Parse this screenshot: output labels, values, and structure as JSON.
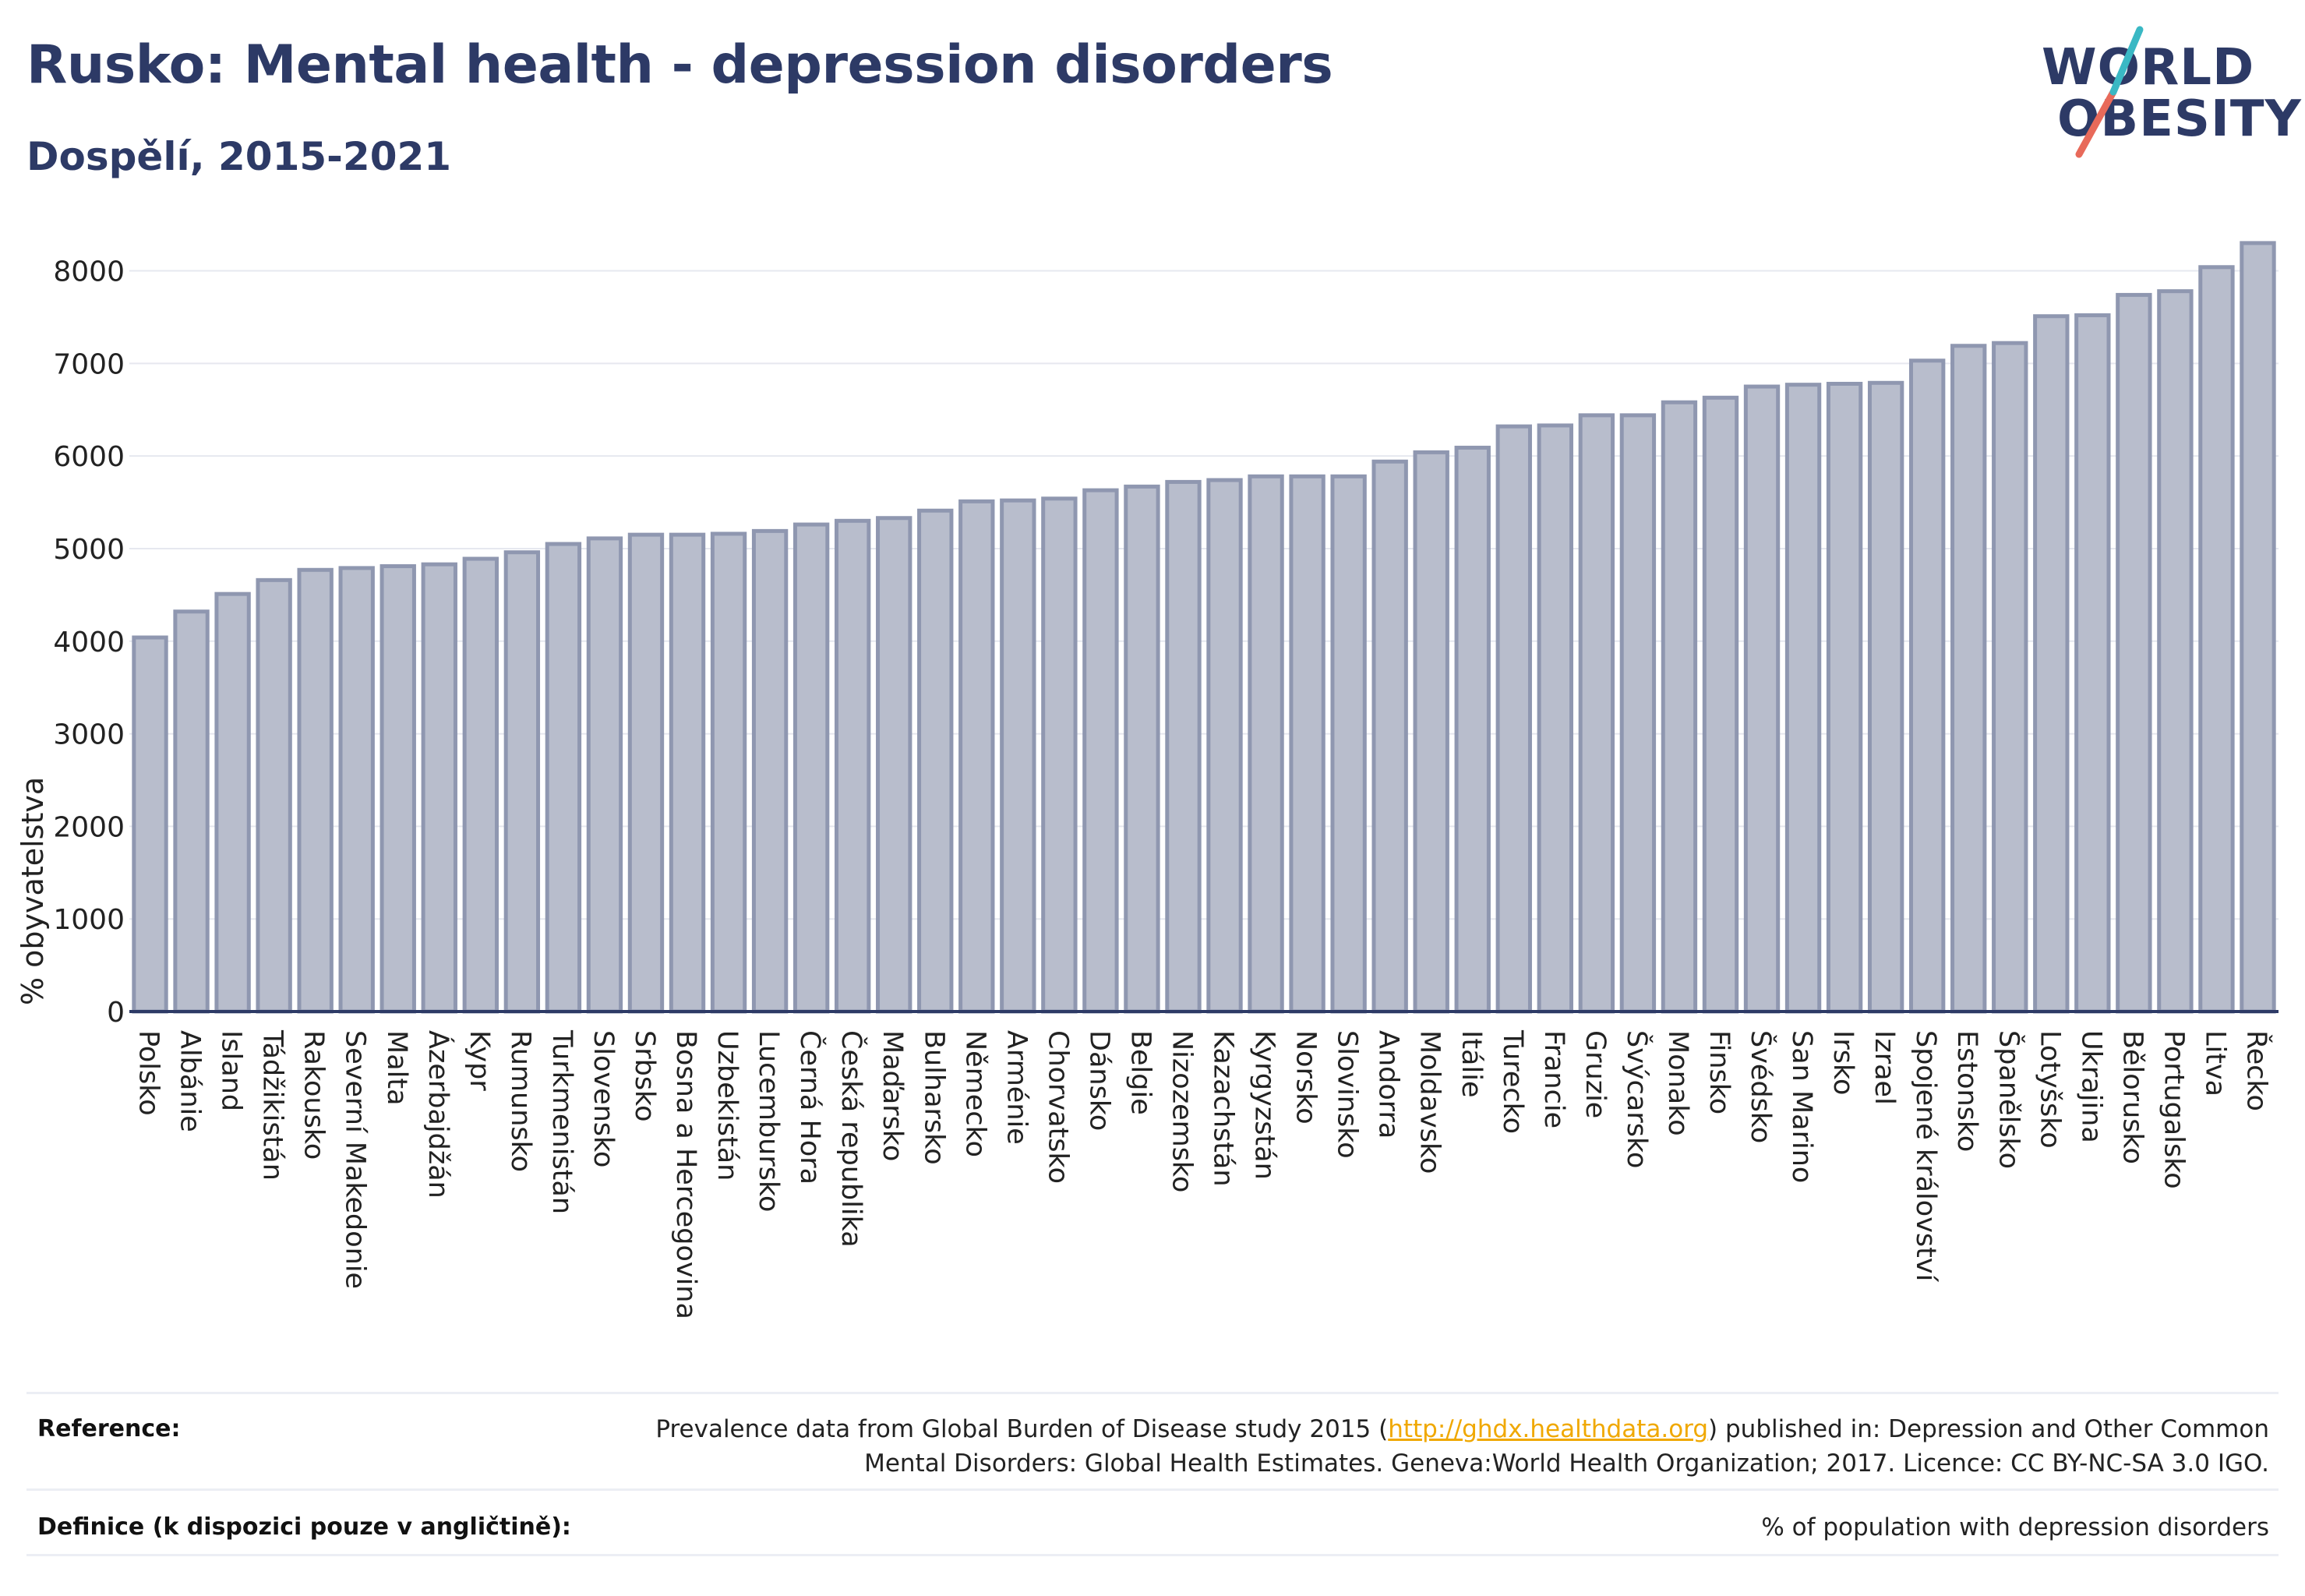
{
  "header": {
    "title": "Rusko: Mental health - depression disorders",
    "subtitle": "Dospělí, 2015-2021"
  },
  "logo": {
    "line1": "WORLD",
    "line2": "OBESITY",
    "accent_colors": [
      "#3ab8c4",
      "#e86a5a"
    ]
  },
  "colors": {
    "bar_fill": "#b8bdcc",
    "bar_stroke": "#8f97b0",
    "grid": "#e6e8ef",
    "axis": "#2d3a66",
    "text": "#222222"
  },
  "chart_data": {
    "type": "bar",
    "ylabel": "% obyvatelstva",
    "ylim": [
      0,
      8400
    ],
    "yticks": [
      0,
      1000,
      2000,
      3000,
      4000,
      5000,
      6000,
      7000,
      8000
    ],
    "grid": true,
    "categories": [
      "Polsko",
      "Albánie",
      "Island",
      "Tádžikistán",
      "Rakousko",
      "Severní Makedonie",
      "Malta",
      "Ázerbajdžán",
      "Kypr",
      "Rumunsko",
      "Turkmenistán",
      "Slovensko",
      "Srbsko",
      "Bosna a Hercegovina",
      "Uzbekistán",
      "Lucembursko",
      "Černá Hora",
      "Česká republika",
      "Maďarsko",
      "Bulharsko",
      "Německo",
      "Arménie",
      "Chorvatsko",
      "Dánsko",
      "Belgie",
      "Nizozemsko",
      "Kazachstán",
      "Kyrgyzstán",
      "Norsko",
      "Slovinsko",
      "Andorra",
      "Moldavsko",
      "Itálie",
      "Turecko",
      "Francie",
      "Gruzie",
      "Švýcarsko",
      "Monako",
      "Finsko",
      "Švédsko",
      "San Marino",
      "Irsko",
      "Izrael",
      "Spojené království",
      "Estonsko",
      "Španělsko",
      "Lotyšsko",
      "Ukrajina",
      "Bělorusko",
      "Portugalsko",
      "Litva",
      "Řecko"
    ],
    "values": [
      4040,
      4320,
      4510,
      4660,
      4770,
      4790,
      4810,
      4830,
      4890,
      4960,
      5050,
      5110,
      5150,
      5150,
      5160,
      5190,
      5260,
      5300,
      5330,
      5410,
      5510,
      5520,
      5540,
      5630,
      5670,
      5720,
      5740,
      5780,
      5780,
      5780,
      5940,
      6040,
      6090,
      6320,
      6330,
      6440,
      6440,
      6580,
      6630,
      6750,
      6770,
      6780,
      6790,
      7030,
      7190,
      7220,
      7510,
      7520,
      7740,
      7780,
      8040,
      8300
    ]
  },
  "footer": {
    "reference_label": "Reference:",
    "reference_pre": "Prevalence data from Global Burden of Disease study 2015 (",
    "reference_link": "http://ghdx.healthdata.org",
    "reference_post": ") published in: Depression and Other Common",
    "reference_line2": "Mental Disorders: Global Health Estimates. Geneva:World Health Organization; 2017. Licence: CC BY-NC-SA 3.0 IGO.",
    "definition_label": "Definice (k dispozici pouze v angličtině):",
    "definition_text": "% of population with depression disorders"
  }
}
